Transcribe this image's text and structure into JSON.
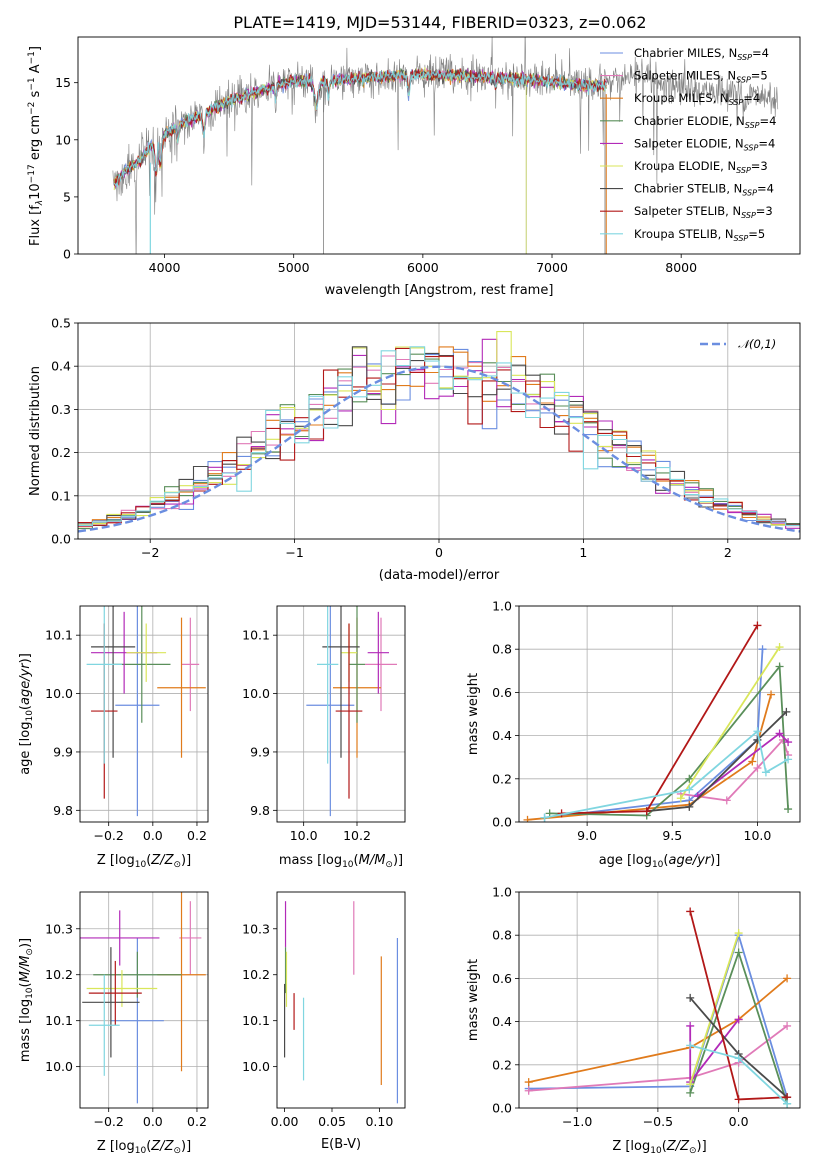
{
  "title": "PLATE=1419, MJD=53144, FIBERID=0323, z=0.062",
  "legend_symbols": {
    "ssp": "SSP",
    "normal": "𝒩(0,1)"
  },
  "models": [
    {
      "label": "Chabrier MILES, N",
      "n": "4",
      "color": "#6b8ee0"
    },
    {
      "label": "Salpeter MILES, N",
      "n": "5",
      "color": "#e07ab8"
    },
    {
      "label": "Kroupa MILES, N",
      "n": "4",
      "color": "#e07b1c"
    },
    {
      "label": "Chabrier ELODIE, N",
      "n": "4",
      "color": "#5a8f5a"
    },
    {
      "label": "Salpeter ELODIE, N",
      "n": "4",
      "color": "#b22ab8"
    },
    {
      "label": "Kroupa ELODIE, N",
      "n": "3",
      "color": "#d9e65a"
    },
    {
      "label": "Chabrier STELIB, N",
      "n": "4",
      "color": "#4a4a4a"
    },
    {
      "label": "Salpeter STELIB, N",
      "n": "3",
      "color": "#b21818"
    },
    {
      "label": "Kroupa STELIB, N",
      "n": "5",
      "color": "#80d6e0"
    }
  ],
  "chart_data": [
    {
      "id": "spectrum",
      "type": "line",
      "xlabel": "wavelength [Angstrom, rest frame]",
      "ylabel": "Flux [f",
      "ylabel_parts": [
        "λ",
        "10",
        "−17",
        " erg cm",
        "−2",
        " s",
        "−1",
        " A",
        "−1",
        "]"
      ],
      "xlim": [
        3330,
        8920
      ],
      "ylim": [
        0,
        19
      ],
      "xticks": [
        4000,
        5000,
        6000,
        7000,
        8000
      ],
      "yticks": [
        0,
        5,
        10,
        15
      ],
      "grid": false,
      "legend_position": "right",
      "continuum": {
        "x": [
          3600,
          3700,
          3800,
          3900,
          4000,
          4100,
          4300,
          4500,
          4800,
          5000,
          5200,
          5500,
          5800,
          6000,
          6300,
          6600,
          6800,
          7000,
          7200,
          7400,
          7600,
          7800,
          8000,
          8200,
          8400,
          8600,
          8800
        ],
        "y": [
          6.0,
          7.3,
          8.0,
          9.5,
          10.4,
          11.2,
          12.3,
          13.4,
          14.5,
          15.2,
          15.0,
          15.4,
          15.6,
          15.7,
          15.6,
          15.4,
          15.3,
          15.1,
          14.8,
          14.7,
          15.6,
          15.2,
          14.6,
          14.3,
          14.0,
          13.8,
          13.5
        ]
      },
      "model_xrange": [
        3600,
        7420
      ]
    },
    {
      "id": "residuals",
      "type": "bar",
      "xlabel": "(data-model)/error",
      "ylabel": "Normed distribution",
      "xlim": [
        -2.5,
        2.5
      ],
      "ylim": [
        0,
        0.5
      ],
      "xticks": [
        -2,
        -1,
        0,
        1,
        2
      ],
      "yticks": [
        0.0,
        0.1,
        0.2,
        0.3,
        0.4,
        0.5
      ],
      "grid": true,
      "legend_position": "top-right",
      "bin_width": 0.1,
      "normal_curve": {
        "mean": 0,
        "sigma": 1,
        "name": "N(0,1)"
      }
    },
    {
      "id": "age_vs_Z",
      "type": "scatter",
      "xlabel": "Z [log10(Z/Z⊙)]",
      "ylabel": "age [log10(age/yr)]",
      "xlim": [
        -0.33,
        0.25
      ],
      "ylim": [
        9.78,
        10.15
      ],
      "xticks": [
        -0.2,
        0.0,
        0.2
      ],
      "yticks": [
        9.8,
        9.9,
        10.0,
        10.1
      ],
      "grid": true,
      "points": [
        {
          "x": -0.07,
          "y": 9.98,
          "xerr": 0.1,
          "yerr": 0.19
        },
        {
          "x": 0.17,
          "y": 10.05,
          "xerr": 0.04,
          "yerr": 0.08
        },
        {
          "x": 0.13,
          "y": 10.01,
          "xerr": 0.11,
          "yerr": 0.12
        },
        {
          "x": -0.05,
          "y": 10.05,
          "xerr": 0.13,
          "yerr": 0.1
        },
        {
          "x": -0.13,
          "y": 10.07,
          "xerr": 0.15,
          "yerr": 0.07
        },
        {
          "x": -0.03,
          "y": 10.07,
          "xerr": 0.09,
          "yerr": 0.05
        },
        {
          "x": -0.18,
          "y": 10.08,
          "xerr": 0.1,
          "yerr": 0.19
        },
        {
          "x": -0.22,
          "y": 9.97,
          "xerr": 0.06,
          "yerr": 0.15
        },
        {
          "x": -0.22,
          "y": 10.05,
          "xerr": 0.08,
          "yerr": 0.17
        }
      ]
    },
    {
      "id": "age_vs_mass",
      "type": "scatter",
      "xlabel": "mass [log10(M/M⊙)]",
      "ylabel": "",
      "xlim": [
        9.9,
        10.38
      ],
      "ylim": [
        9.78,
        10.15
      ],
      "xticks": [
        10.0,
        10.2
      ],
      "yticks": [
        9.8,
        9.9,
        10.0,
        10.1
      ],
      "grid": true,
      "points": [
        {
          "x": 10.1,
          "y": 9.98,
          "xerr": 0.09,
          "yerr": 0.19
        },
        {
          "x": 10.29,
          "y": 10.05,
          "xerr": 0.06,
          "yerr": 0.08
        },
        {
          "x": 10.2,
          "y": 10.01,
          "xerr": 0.09,
          "yerr": 0.12
        },
        {
          "x": 10.2,
          "y": 10.05,
          "xerr": 0.03,
          "yerr": 0.1
        },
        {
          "x": 10.28,
          "y": 10.07,
          "xerr": 0.04,
          "yerr": 0.07
        },
        {
          "x": 10.17,
          "y": 10.07,
          "xerr": 0.03,
          "yerr": 0.05
        },
        {
          "x": 10.14,
          "y": 10.08,
          "xerr": 0.07,
          "yerr": 0.19
        },
        {
          "x": 10.17,
          "y": 9.97,
          "xerr": 0.05,
          "yerr": 0.15
        },
        {
          "x": 10.09,
          "y": 10.05,
          "xerr": 0.04,
          "yerr": 0.17
        }
      ]
    },
    {
      "id": "weight_vs_age",
      "type": "line",
      "xlabel": "age [log10(age/yr)]",
      "ylabel": "mass weight",
      "xlim": [
        8.6,
        10.25
      ],
      "ylim": [
        0,
        1
      ],
      "xticks": [
        9.0,
        9.5,
        10.0
      ],
      "yticks": [
        0.0,
        0.2,
        0.4,
        0.6,
        0.8,
        1.0
      ],
      "grid": true,
      "series": [
        [
          [
            8.75,
            0.02
          ],
          [
            9.6,
            0.1
          ],
          [
            10.0,
            0.38
          ],
          [
            10.03,
            0.8
          ]
        ],
        [
          [
            9.55,
            0.13
          ],
          [
            9.82,
            0.1
          ],
          [
            10.0,
            0.25
          ],
          [
            10.15,
            0.38
          ],
          [
            10.18,
            0.31
          ]
        ],
        [
          [
            8.65,
            0.01
          ],
          [
            9.6,
            0.08
          ],
          [
            9.97,
            0.28
          ],
          [
            10.08,
            0.59
          ]
        ],
        [
          [
            8.78,
            0.04
          ],
          [
            9.35,
            0.03
          ],
          [
            9.6,
            0.2
          ],
          [
            10.13,
            0.72
          ],
          [
            10.18,
            0.06
          ]
        ],
        [
          [
            9.65,
            0.12
          ],
          [
            10.13,
            0.41
          ],
          [
            10.18,
            0.37
          ]
        ],
        [
          [
            9.55,
            0.11
          ],
          [
            10.13,
            0.81
          ]
        ],
        [
          [
            9.35,
            0.05
          ],
          [
            9.6,
            0.07
          ],
          [
            10.0,
            0.38
          ],
          [
            10.17,
            0.51
          ]
        ],
        [
          [
            8.85,
            0.04
          ],
          [
            9.35,
            0.05
          ],
          [
            10.0,
            0.91
          ]
        ],
        [
          [
            8.75,
            0.02
          ],
          [
            9.6,
            0.15
          ],
          [
            10.0,
            0.42
          ],
          [
            10.05,
            0.23
          ],
          [
            10.18,
            0.29
          ]
        ]
      ]
    },
    {
      "id": "mass_vs_Z",
      "type": "scatter",
      "xlabel": "Z [log10(Z/Z⊙)]",
      "ylabel": "mass [log10(M/M⊙)]",
      "xlim": [
        -0.33,
        0.25
      ],
      "ylim": [
        9.91,
        10.38
      ],
      "xticks": [
        -0.2,
        0.0,
        0.2
      ],
      "yticks": [
        10.0,
        10.1,
        10.2,
        10.3
      ],
      "grid": true,
      "points": [
        {
          "x": -0.07,
          "y": 10.1,
          "xerr": 0.12,
          "yerr": 0.18
        },
        {
          "x": 0.17,
          "y": 10.28,
          "xerr": 0.05,
          "yerr": 0.08
        },
        {
          "x": 0.13,
          "y": 10.2,
          "xerr": 0.11,
          "yerr": 0.21
        },
        {
          "x": -0.07,
          "y": 10.2,
          "xerr": 0.2,
          "yerr": 0.05
        },
        {
          "x": -0.15,
          "y": 10.28,
          "xerr": 0.18,
          "yerr": 0.06
        },
        {
          "x": -0.14,
          "y": 10.17,
          "xerr": 0.16,
          "yerr": 0.04
        },
        {
          "x": -0.19,
          "y": 10.14,
          "xerr": 0.13,
          "yerr": 0.12
        },
        {
          "x": -0.17,
          "y": 10.16,
          "xerr": 0.12,
          "yerr": 0.07
        },
        {
          "x": -0.22,
          "y": 10.09,
          "xerr": 0.07,
          "yerr": 0.11
        }
      ]
    },
    {
      "id": "mass_vs_ebv",
      "type": "scatter",
      "xlabel": "E(B-V)",
      "ylabel": "",
      "xlim": [
        -0.008,
        0.127
      ],
      "ylim": [
        9.91,
        10.38
      ],
      "xticks": [
        0.0,
        0.05,
        0.1
      ],
      "yticks": [
        10.0,
        10.1,
        10.2,
        10.3
      ],
      "grid": false,
      "points": [
        {
          "x": 0.119,
          "y": 10.1,
          "xerr": 0,
          "yerr": 0.18
        },
        {
          "x": 0.073,
          "y": 10.28,
          "xerr": 0,
          "yerr": 0.08
        },
        {
          "x": 0.102,
          "y": 10.1,
          "xerr": 0,
          "yerr": 0.14
        },
        {
          "x": 0.001,
          "y": 10.21,
          "xerr": 0,
          "yerr": 0.05
        },
        {
          "x": 0.001,
          "y": 10.31,
          "xerr": 0,
          "yerr": 0.05
        },
        {
          "x": 0.002,
          "y": 10.19,
          "xerr": 0,
          "yerr": 0.06
        },
        {
          "x": 0.0,
          "y": 10.1,
          "xerr": 0,
          "yerr": 0.08
        },
        {
          "x": 0.01,
          "y": 10.12,
          "xerr": 0,
          "yerr": 0.04
        },
        {
          "x": 0.02,
          "y": 10.06,
          "xerr": 0,
          "yerr": 0.09
        }
      ]
    },
    {
      "id": "weight_vs_Z",
      "type": "line",
      "xlabel": "Z [log10(Z/Z⊙)]",
      "ylabel": "mass weight",
      "xlim": [
        -1.36,
        0.38
      ],
      "ylim": [
        0,
        1
      ],
      "xticks": [
        -1.0,
        -0.5,
        0.0
      ],
      "yticks": [
        0.0,
        0.2,
        0.4,
        0.6,
        0.8,
        1.0
      ],
      "grid": true,
      "series": [
        [
          [
            -1.3,
            0.09
          ],
          [
            -0.3,
            0.1
          ],
          [
            0.0,
            0.8
          ],
          [
            0.3,
            0.05
          ]
        ],
        [
          [
            -1.3,
            0.08
          ],
          [
            -0.3,
            0.14
          ],
          [
            0.0,
            0.21
          ],
          [
            0.3,
            0.38
          ]
        ],
        [
          [
            -1.3,
            0.12
          ],
          [
            -0.3,
            0.28
          ],
          [
            0.0,
            0.41
          ],
          [
            0.3,
            0.6
          ]
        ],
        [
          [
            -0.3,
            0.07
          ],
          [
            0.0,
            0.72
          ],
          [
            0.3,
            0.02
          ]
        ],
        [
          [
            -0.3,
            0.38
          ],
          [
            -0.3,
            0.12
          ],
          [
            0.0,
            0.41
          ]
        ],
        [
          [
            -0.3,
            0.11
          ],
          [
            0.0,
            0.81
          ]
        ],
        [
          [
            -0.3,
            0.51
          ],
          [
            0.0,
            0.25
          ],
          [
            0.3,
            0.05
          ]
        ],
        [
          [
            -0.3,
            0.91
          ],
          [
            0.0,
            0.04
          ],
          [
            0.3,
            0.05
          ]
        ],
        [
          [
            -0.3,
            0.29
          ],
          [
            0.0,
            0.23
          ],
          [
            0.3,
            0.02
          ]
        ]
      ]
    }
  ]
}
